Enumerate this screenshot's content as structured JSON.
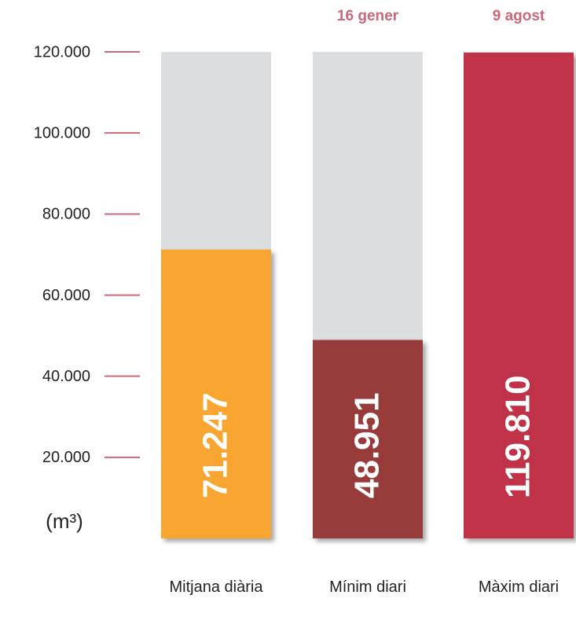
{
  "chart_data": {
    "type": "bar",
    "categories": [
      "Mitjana diària",
      "Mínim diari",
      "Màxim diari"
    ],
    "top_labels": [
      null,
      "16 gener",
      "9 agost"
    ],
    "values": [
      71247,
      48951,
      119810
    ],
    "value_labels": [
      "71.247",
      "48.951",
      "119.810"
    ],
    "colors": [
      "#f9a533",
      "#973a3b",
      "#c03146"
    ],
    "ylabel": "(m³)",
    "ylim": [
      0,
      120000
    ],
    "yticks": [
      {
        "value": 20000,
        "label": "20.000"
      },
      {
        "value": 40000,
        "label": "40.000"
      },
      {
        "value": 60000,
        "label": "60.000"
      },
      {
        "value": 80000,
        "label": "80.000"
      },
      {
        "value": 100000,
        "label": "100.000"
      },
      {
        "value": 120000,
        "label": "120.000"
      }
    ]
  }
}
